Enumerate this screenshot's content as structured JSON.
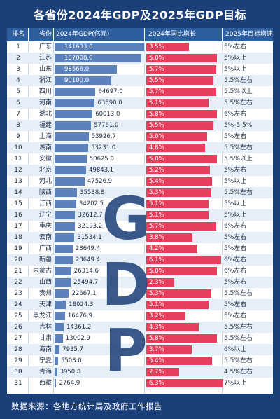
{
  "page_title": "各省份2024年GDP及2025年GDP目标",
  "headers": {
    "rank": "排名",
    "province": "省份",
    "gdp": "2024年GDP(亿元)",
    "growth": "2024年同比增长",
    "target": "2025年目标增速"
  },
  "watermark": [
    "G",
    "D",
    "P"
  ],
  "footer": "数据来源：各地方统计局及政府工作报告",
  "colors": {
    "background": "#1b3f78",
    "header": "#2d5e9e",
    "gdp_bar": "#5b82be",
    "growth_bar": "#e4405e"
  },
  "chart_data": {
    "type": "table",
    "gdp_axis_max": 141633.8,
    "growth_axis_max": 6.3,
    "rows": [
      {
        "rank": "1",
        "province": "广东",
        "gdp": 141633.8,
        "gdp_label": "141633.8",
        "growth": 3.5,
        "growth_label": "3.5%",
        "target": "5%左右"
      },
      {
        "rank": "2",
        "province": "江苏",
        "gdp": 137008.0,
        "gdp_label": "137008.0",
        "growth": 5.8,
        "growth_label": "5.8%",
        "target": "5%以上"
      },
      {
        "rank": "3",
        "province": "山东",
        "gdp": 98566.0,
        "gdp_label": "98566.0",
        "growth": 5.7,
        "growth_label": "5.7%",
        "target": "5%以上"
      },
      {
        "rank": "4",
        "province": "浙江",
        "gdp": 90100.0,
        "gdp_label": "90100.0",
        "growth": 5.5,
        "growth_label": "5.5%",
        "target": "5.5%左右"
      },
      {
        "rank": "5",
        "province": "四川",
        "gdp": 64697.0,
        "gdp_label": "64697.0",
        "growth": 5.7,
        "growth_label": "5.7%",
        "target": "5.5%以上"
      },
      {
        "rank": "6",
        "province": "河南",
        "gdp": 63590.0,
        "gdp_label": "63590.0",
        "growth": 5.1,
        "growth_label": "5.1%",
        "target": "5.5%左右"
      },
      {
        "rank": "7",
        "province": "湖北",
        "gdp": 60013.0,
        "gdp_label": "60013.0",
        "growth": 5.8,
        "growth_label": "5.8%",
        "target": "6%左右"
      },
      {
        "rank": "8",
        "province": "福建",
        "gdp": 57761.0,
        "gdp_label": "57761.0",
        "growth": 5.5,
        "growth_label": "5.5%",
        "target": "5%-5.5%"
      },
      {
        "rank": "9",
        "province": "上海",
        "gdp": 53926.7,
        "gdp_label": "53926.7",
        "growth": 5.0,
        "growth_label": "5.0%",
        "target": "5%左右"
      },
      {
        "rank": "10",
        "province": "湖南",
        "gdp": 53231.0,
        "gdp_label": "53231.0",
        "growth": 4.8,
        "growth_label": "4.8%",
        "target": "5.5%左右"
      },
      {
        "rank": "11",
        "province": "安徽",
        "gdp": 50625.0,
        "gdp_label": "50625.0",
        "growth": 5.8,
        "growth_label": "5.8%",
        "target": "5.5%以上"
      },
      {
        "rank": "12",
        "province": "北京",
        "gdp": 49843.1,
        "gdp_label": "49843.1",
        "growth": 5.2,
        "growth_label": "5.2%",
        "target": "5%左右"
      },
      {
        "rank": "13",
        "province": "河北",
        "gdp": 47526.9,
        "gdp_label": "47526.9",
        "growth": 5.4,
        "growth_label": "5.4%",
        "target": "5%以上"
      },
      {
        "rank": "14",
        "province": "陕西",
        "gdp": 35538.8,
        "gdp_label": "35538.8",
        "growth": 5.3,
        "growth_label": "5.3%",
        "target": "5.5%左右"
      },
      {
        "rank": "15",
        "province": "江西",
        "gdp": 34202.5,
        "gdp_label": "34202.5",
        "growth": 5.1,
        "growth_label": "5.1%",
        "target": "5%以上"
      },
      {
        "rank": "16",
        "province": "辽宁",
        "gdp": 32612.7,
        "gdp_label": "32612.7",
        "growth": 5.1,
        "growth_label": "5.1%",
        "target": "5%以上"
      },
      {
        "rank": "17",
        "province": "重庆",
        "gdp": 32193.2,
        "gdp_label": "32193.2",
        "growth": 5.7,
        "growth_label": "5.7%",
        "target": "6%左右"
      },
      {
        "rank": "18",
        "province": "云南",
        "gdp": 31534.1,
        "gdp_label": "31534.1",
        "growth": 3.8,
        "growth_label": "3.8%",
        "target": "5%左右"
      },
      {
        "rank": "19",
        "province": "广西",
        "gdp": 28649.4,
        "gdp_label": "28649.4",
        "growth": 4.2,
        "growth_label": "4.2%",
        "target": "5%左右"
      },
      {
        "rank": "20",
        "province": "新疆",
        "gdp": 28649.4,
        "gdp_label": "28649.4",
        "growth": 6.1,
        "growth_label": "6.1%",
        "target": "6%左右"
      },
      {
        "rank": "21",
        "province": "内蒙古",
        "gdp": 26314.6,
        "gdp_label": "26314.6",
        "growth": 5.8,
        "growth_label": "5.8%",
        "target": "6%左右"
      },
      {
        "rank": "22",
        "province": "山西",
        "gdp": 25494.7,
        "gdp_label": "25494.7",
        "growth": 2.3,
        "growth_label": "2.3%",
        "target": "5%左右"
      },
      {
        "rank": "23",
        "province": "贵州",
        "gdp": 22667.1,
        "gdp_label": "22667.1",
        "growth": 5.3,
        "growth_label": "5.3%",
        "target": "5.5%左右"
      },
      {
        "rank": "24",
        "province": "天津",
        "gdp": 18024.3,
        "gdp_label": "18024.3",
        "growth": 5.1,
        "growth_label": "5.1%",
        "target": "5%左右"
      },
      {
        "rank": "25",
        "province": "黑龙江",
        "gdp": 16476.9,
        "gdp_label": "16476.9",
        "growth": 3.2,
        "growth_label": "3.2%",
        "target": "5%左右"
      },
      {
        "rank": "26",
        "province": "吉林",
        "gdp": 14361.2,
        "gdp_label": "14361.2",
        "growth": 4.3,
        "growth_label": "4.3%",
        "target": "5.5%左右"
      },
      {
        "rank": "27",
        "province": "甘肃",
        "gdp": 13002.9,
        "gdp_label": "13002.9",
        "growth": 5.8,
        "growth_label": "5.8%",
        "target": "5.5%左右"
      },
      {
        "rank": "28",
        "province": "海南",
        "gdp": 7935.7,
        "gdp_label": "7935.7",
        "growth": 3.7,
        "growth_label": "3.7%",
        "target": "6%以上"
      },
      {
        "rank": "29",
        "province": "宁夏",
        "gdp": 5503.0,
        "gdp_label": "5503.0",
        "growth": 5.4,
        "growth_label": "5.4%",
        "target": "5.5%左右"
      },
      {
        "rank": "30",
        "province": "青海",
        "gdp": 3950.8,
        "gdp_label": "3950.8",
        "growth": 2.7,
        "growth_label": "2.7%",
        "target": "4.5%左右"
      },
      {
        "rank": "31",
        "province": "西藏",
        "gdp": 2764.9,
        "gdp_label": "2764.9",
        "growth": 6.3,
        "growth_label": "6.3%",
        "target": "7%以上"
      }
    ]
  }
}
